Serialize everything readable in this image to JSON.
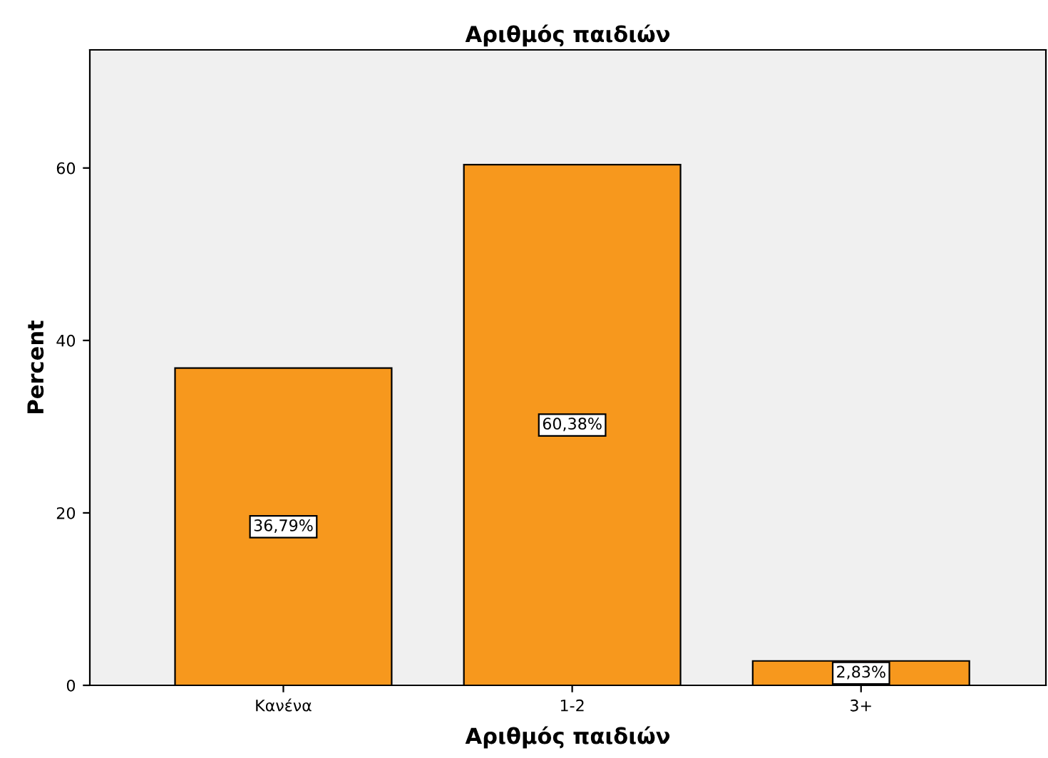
{
  "chart_data": {
    "type": "bar",
    "title": "Αριθμός παιδιών",
    "xlabel": "Αριθμός παιδιών",
    "ylabel": "Percent",
    "categories": [
      "Κανένα",
      "1-2",
      "3+"
    ],
    "values": [
      36.79,
      60.38,
      2.83
    ],
    "value_labels": [
      "36,79%",
      "60,38%",
      "2,83%"
    ],
    "color": "#f7981d",
    "ylim": [
      0,
      73.7
    ],
    "yticks": [
      0,
      20,
      40,
      60
    ],
    "grid": false
  }
}
